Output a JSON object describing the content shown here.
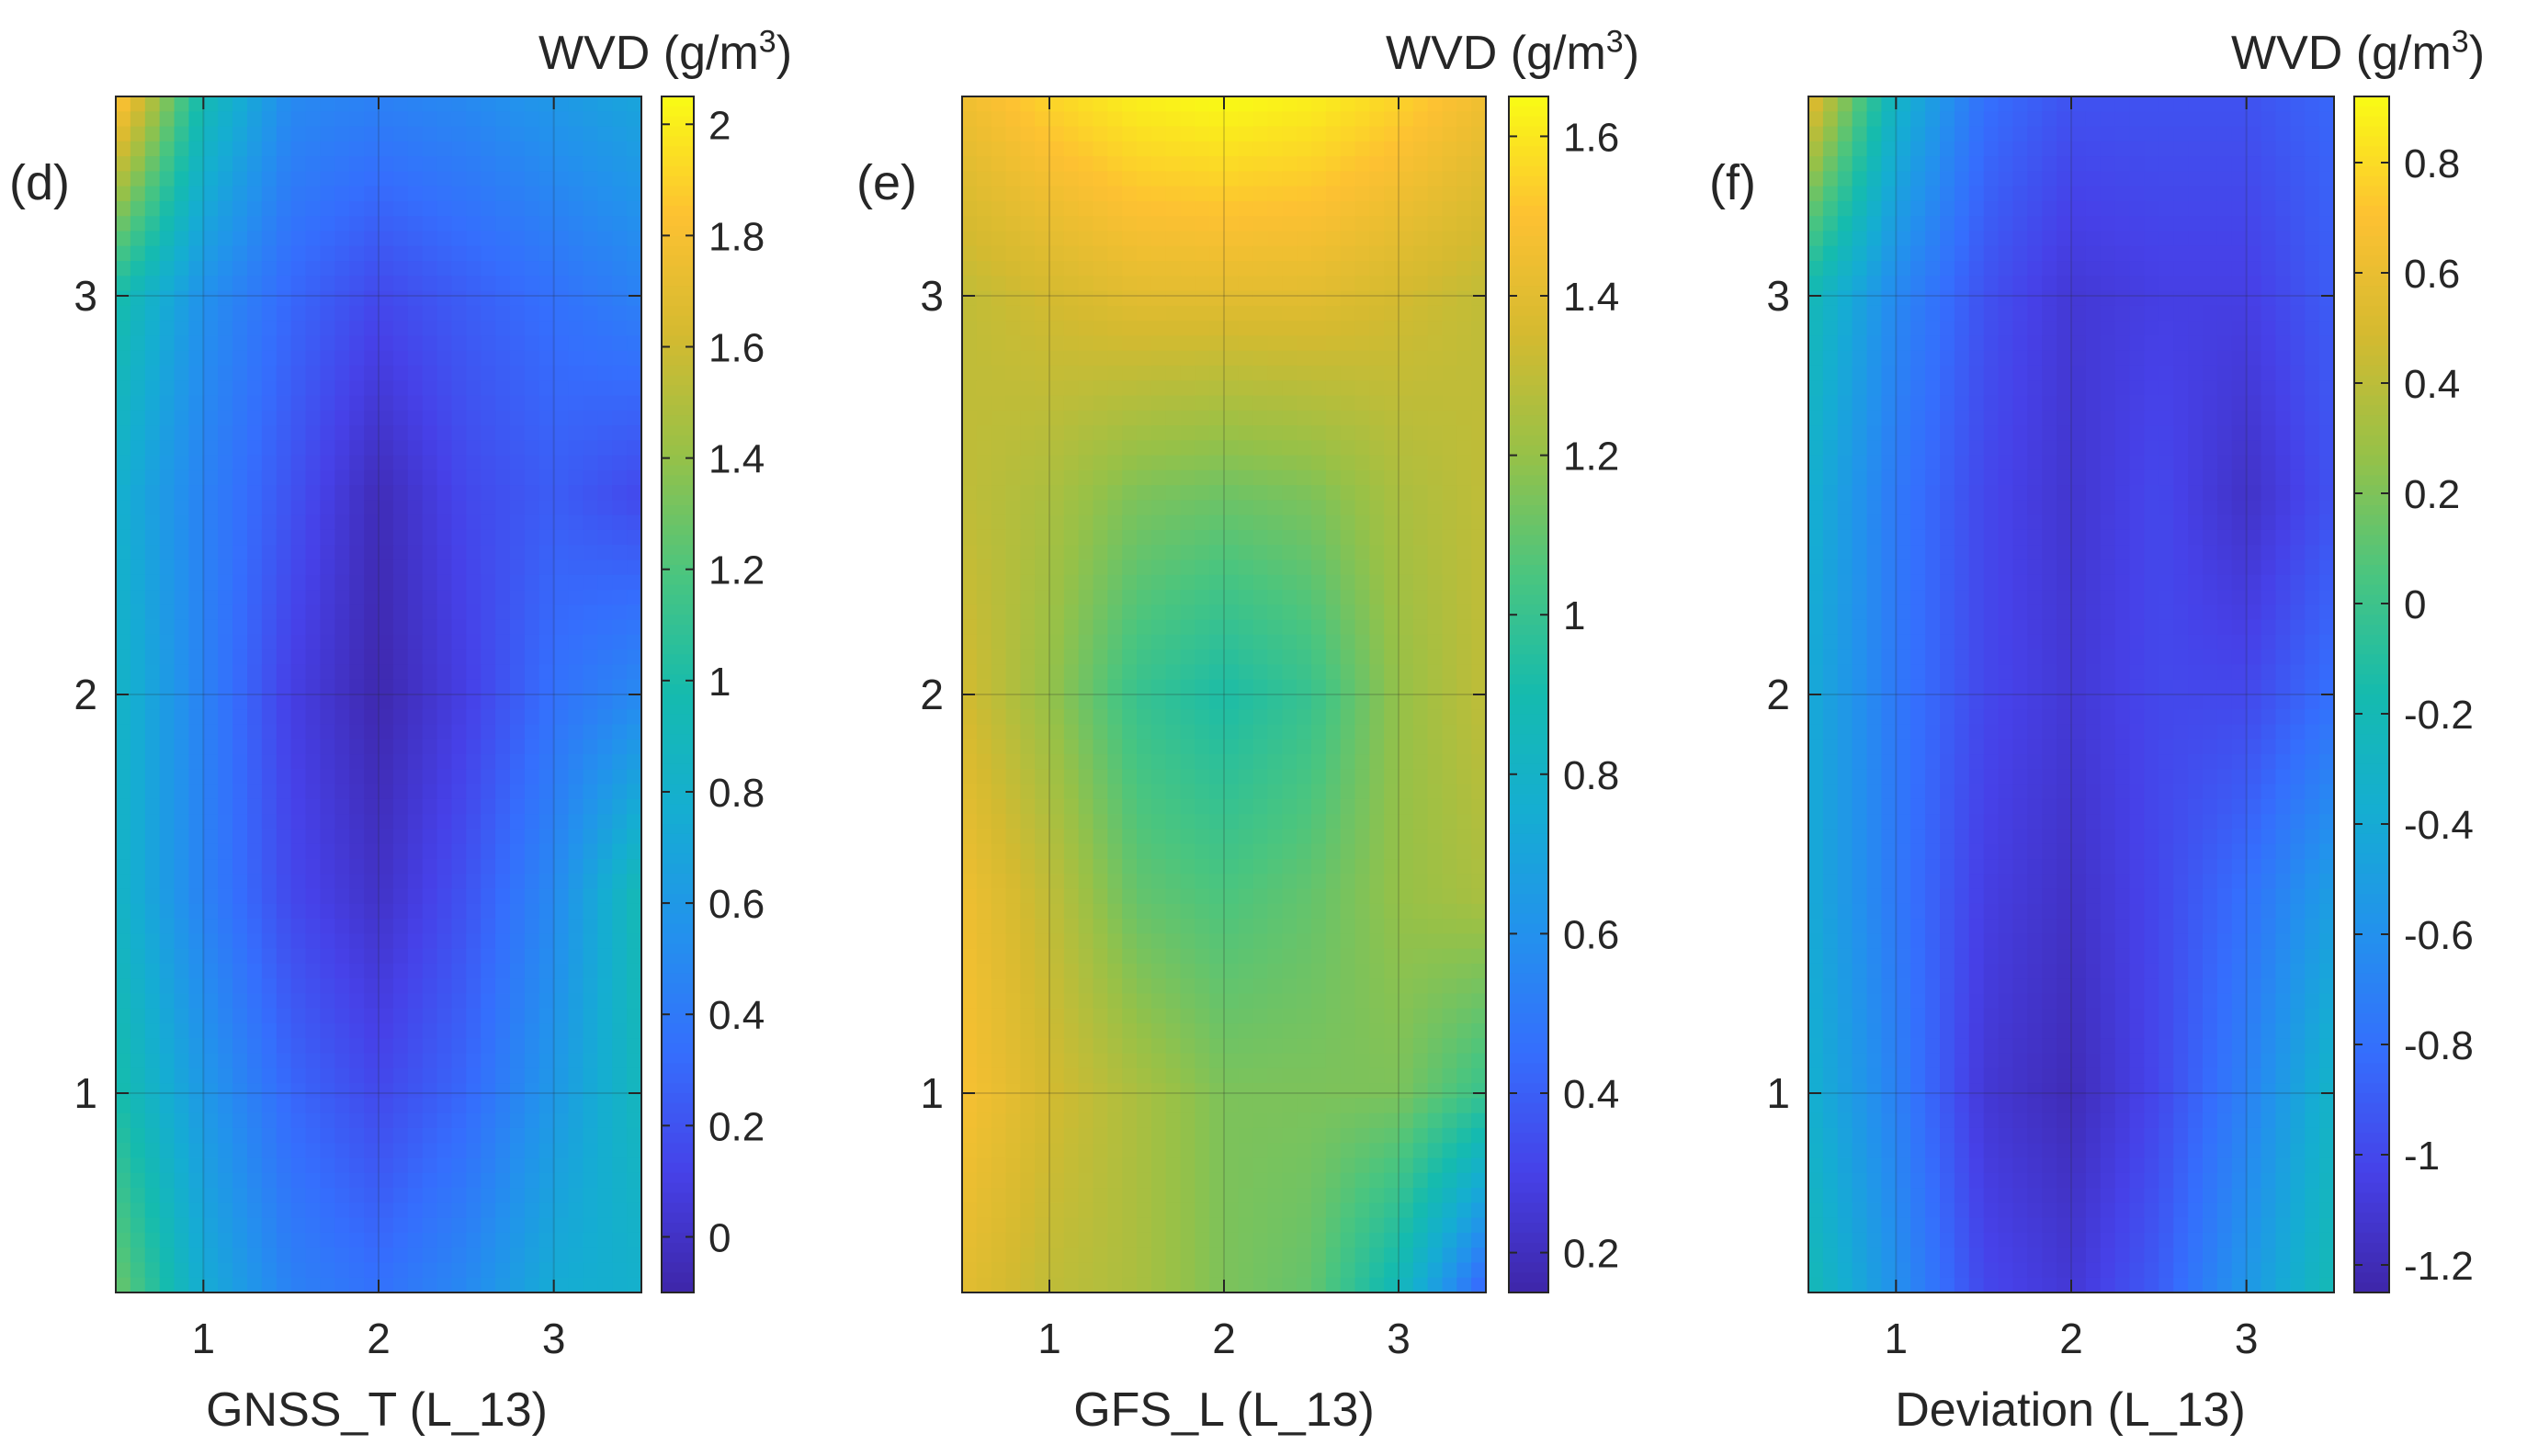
{
  "figure": {
    "units": "(g/m",
    "units_sup": "3",
    "units_close": ")",
    "colorbar_base": "WVD"
  },
  "chart_data": [
    {
      "type": "heatmap",
      "panel_label": "(d)",
      "colorbar_title": "WVD (g/m3)",
      "xlabel": "GNSS_T (L_13)",
      "ylabel": "",
      "xlim": [
        0.5,
        3.5
      ],
      "ylim": [
        0.5,
        3.5
      ],
      "xticks": [
        1,
        2,
        3
      ],
      "yticks": [
        1,
        2,
        3
      ],
      "clim": [
        -0.1,
        2.05
      ],
      "cticks": [
        0,
        0.2,
        0.4,
        0.6,
        0.8,
        1,
        1.2,
        1.4,
        1.6,
        1.8,
        2
      ],
      "ctick_labels": [
        "0",
        "0.2",
        "0.4",
        "0.6",
        "0.8",
        "1",
        "1.2",
        "1.4",
        "1.6",
        "1.8",
        "2"
      ],
      "grid": true,
      "colormap": "parula",
      "x": [
        0.5,
        1.0,
        1.5,
        2.0,
        2.5,
        3.0,
        3.5
      ],
      "y": [
        3.5,
        3.0,
        2.5,
        2.0,
        1.5,
        1.0,
        0.5
      ],
      "z": [
        [
          1.9,
          0.95,
          0.5,
          0.45,
          0.5,
          0.6,
          0.7
        ],
        [
          1.0,
          0.55,
          0.3,
          0.15,
          0.25,
          0.35,
          0.45
        ],
        [
          0.8,
          0.45,
          0.2,
          -0.05,
          0.15,
          0.25,
          0.15
        ],
        [
          0.85,
          0.45,
          0.1,
          -0.08,
          0.1,
          0.35,
          0.5
        ],
        [
          0.85,
          0.45,
          0.15,
          0.0,
          0.2,
          0.5,
          0.95
        ],
        [
          1.0,
          0.6,
          0.3,
          0.15,
          0.3,
          0.6,
          0.9
        ],
        [
          1.3,
          0.75,
          0.45,
          0.35,
          0.5,
          0.75,
          0.8
        ]
      ]
    },
    {
      "type": "heatmap",
      "panel_label": "(e)",
      "colorbar_title": "WVD (g/m3)",
      "xlabel": "GFS_L (L_13)",
      "ylabel": "",
      "xlim": [
        0.5,
        3.5
      ],
      "ylim": [
        0.5,
        3.5
      ],
      "xticks": [
        1,
        2,
        3
      ],
      "yticks": [
        1,
        2,
        3
      ],
      "clim": [
        0.15,
        1.65
      ],
      "cticks": [
        0.2,
        0.4,
        0.6,
        0.8,
        1,
        1.2,
        1.4,
        1.6
      ],
      "ctick_labels": [
        "0.2",
        "0.4",
        "0.6",
        "0.8",
        "1",
        "1.2",
        "1.4",
        "1.6"
      ],
      "grid": true,
      "colormap": "parula",
      "x": [
        0.5,
        1.0,
        1.5,
        2.0,
        2.5,
        3.0,
        3.5
      ],
      "y": [
        3.5,
        3.0,
        2.5,
        2.0,
        1.5,
        1.0,
        0.5
      ],
      "z": [
        [
          1.45,
          1.55,
          1.62,
          1.65,
          1.62,
          1.55,
          1.45
        ],
        [
          1.3,
          1.35,
          1.4,
          1.4,
          1.4,
          1.35,
          1.3
        ],
        [
          1.3,
          1.25,
          1.15,
          1.12,
          1.15,
          1.25,
          1.3
        ],
        [
          1.35,
          1.2,
          1.0,
          0.92,
          1.0,
          1.2,
          1.3
        ],
        [
          1.45,
          1.3,
          1.1,
          1.05,
          1.1,
          1.2,
          1.25
        ],
        [
          1.48,
          1.35,
          1.25,
          1.15,
          1.15,
          1.15,
          1.0
        ],
        [
          1.4,
          1.3,
          1.25,
          1.15,
          1.1,
          0.85,
          0.4
        ]
      ]
    },
    {
      "type": "heatmap",
      "panel_label": "(f)",
      "colorbar_title": "WVD (g/m3)",
      "xlabel": "Deviation (L_13)",
      "ylabel": "",
      "xlim": [
        0.5,
        3.5
      ],
      "ylim": [
        0.5,
        3.5
      ],
      "xticks": [
        1,
        2,
        3
      ],
      "yticks": [
        1,
        2,
        3
      ],
      "clim": [
        -1.25,
        0.92
      ],
      "cticks": [
        -1.2,
        -1,
        -0.8,
        -0.6,
        -0.4,
        -0.2,
        0,
        0.2,
        0.4,
        0.6,
        0.8
      ],
      "ctick_labels": [
        "-1.2",
        "-1",
        "-0.8",
        "-0.6",
        "-0.4",
        "-0.2",
        "0",
        "0.2",
        "0.4",
        "0.6",
        "0.8"
      ],
      "grid": true,
      "colormap": "parula",
      "x": [
        0.5,
        1.0,
        1.5,
        2.0,
        2.5,
        3.0,
        3.5
      ],
      "y": [
        3.5,
        3.0,
        2.5,
        2.0,
        1.5,
        1.0,
        0.5
      ],
      "z": [
        [
          0.6,
          -0.3,
          -0.8,
          -0.95,
          -0.95,
          -0.95,
          -0.85
        ],
        [
          -0.2,
          -0.65,
          -0.95,
          -1.1,
          -1.05,
          -1.05,
          -0.9
        ],
        [
          -0.35,
          -0.75,
          -1.0,
          -1.12,
          -1.0,
          -1.15,
          -0.95
        ],
        [
          -0.4,
          -0.75,
          -1.0,
          -1.1,
          -1.0,
          -1.0,
          -0.8
        ],
        [
          -0.4,
          -0.75,
          -1.05,
          -1.15,
          -1.0,
          -0.8,
          -0.5
        ],
        [
          -0.35,
          -0.7,
          -1.1,
          -1.2,
          -1.0,
          -0.7,
          -0.3
        ],
        [
          -0.2,
          -0.6,
          -1.0,
          -1.1,
          -0.9,
          -0.55,
          -0.2
        ]
      ]
    }
  ]
}
